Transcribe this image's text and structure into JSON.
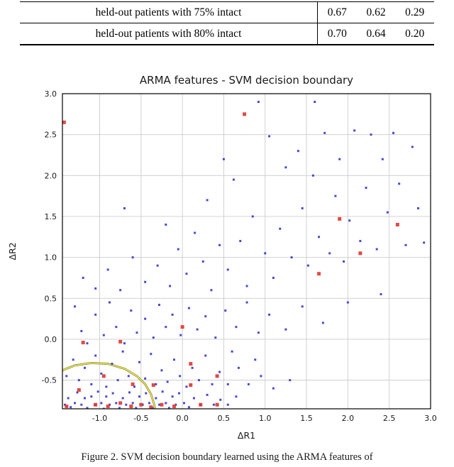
{
  "table": {
    "rows": [
      {
        "label": "held-out patients with 75% intact",
        "values": [
          "0.67",
          "0.62",
          "0.29"
        ]
      },
      {
        "label": "held-out patients with 80% intact",
        "values": [
          "0.70",
          "0.64",
          "0.20"
        ]
      }
    ]
  },
  "chart_data": {
    "type": "scatter",
    "title": "ARMA features - SVM decision boundary",
    "xlabel": "ΔR1",
    "ylabel": "ΔR2",
    "xlim": [
      -1.45,
      3.0
    ],
    "ylim": [
      -0.85,
      3.0
    ],
    "xticks": [
      -1.0,
      -0.5,
      0.0,
      0.5,
      1.0,
      1.5,
      2.0,
      2.5,
      3.0
    ],
    "yticks": [
      -0.5,
      0.0,
      0.5,
      1.0,
      1.5,
      2.0,
      2.5,
      3.0
    ],
    "grid": true,
    "grid_color": "#cccccc",
    "series": [
      {
        "name": "class-blue",
        "color": "#3535c9",
        "marker": "square",
        "marker_size": 3,
        "points": [
          [
            -1.42,
            -0.8
          ],
          [
            -1.38,
            -0.72
          ],
          [
            -1.35,
            -0.83
          ],
          [
            -1.3,
            -0.78
          ],
          [
            -1.27,
            -0.65
          ],
          [
            -1.22,
            -0.8
          ],
          [
            -1.18,
            -0.72
          ],
          [
            -1.15,
            -0.84
          ],
          [
            -1.1,
            -0.7
          ],
          [
            -1.06,
            -0.8
          ],
          [
            -1.02,
            -0.64
          ],
          [
            -0.98,
            -0.78
          ],
          [
            -0.95,
            -0.85
          ],
          [
            -0.92,
            -0.7
          ],
          [
            -0.88,
            -0.8
          ],
          [
            -0.84,
            -0.66
          ],
          [
            -0.8,
            -0.78
          ],
          [
            -0.76,
            -0.84
          ],
          [
            -0.72,
            -0.72
          ],
          [
            -0.68,
            -0.8
          ],
          [
            -0.64,
            -0.65
          ],
          [
            -0.6,
            -0.78
          ],
          [
            -0.56,
            -0.84
          ],
          [
            -0.52,
            -0.7
          ],
          [
            -0.48,
            -0.8
          ],
          [
            -0.44,
            -0.66
          ],
          [
            -0.4,
            -0.78
          ],
          [
            -0.36,
            -0.84
          ],
          [
            -0.32,
            -0.72
          ],
          [
            -0.28,
            -0.8
          ],
          [
            -0.24,
            -0.64
          ],
          [
            -0.2,
            -0.78
          ],
          [
            -0.16,
            -0.84
          ],
          [
            -0.12,
            -0.7
          ],
          [
            -0.08,
            -0.8
          ],
          [
            -0.04,
            -0.66
          ],
          [
            0.02,
            -0.78
          ],
          [
            0.08,
            -0.83
          ],
          [
            0.14,
            -0.72
          ],
          [
            0.22,
            -0.8
          ],
          [
            0.3,
            -0.68
          ],
          [
            0.38,
            -0.8
          ],
          [
            0.46,
            -0.74
          ],
          [
            0.55,
            -0.8
          ],
          [
            0.65,
            -0.7
          ],
          [
            -1.4,
            -0.45
          ],
          [
            -1.32,
            -0.25
          ],
          [
            -1.25,
            -0.5
          ],
          [
            -1.18,
            -0.35
          ],
          [
            -1.1,
            -0.55
          ],
          [
            -1.05,
            -0.2
          ],
          [
            -0.98,
            -0.42
          ],
          [
            -0.92,
            -0.58
          ],
          [
            -0.85,
            -0.3
          ],
          [
            -0.78,
            -0.5
          ],
          [
            -0.72,
            -0.15
          ],
          [
            -0.65,
            -0.45
          ],
          [
            -0.58,
            -0.58
          ],
          [
            -0.52,
            -0.28
          ],
          [
            -0.45,
            -0.48
          ],
          [
            -0.38,
            -0.18
          ],
          [
            -0.32,
            -0.55
          ],
          [
            -0.25,
            -0.38
          ],
          [
            -0.18,
            -0.52
          ],
          [
            -0.1,
            -0.25
          ],
          [
            -0.03,
            -0.45
          ],
          [
            0.05,
            -0.58
          ],
          [
            0.12,
            -0.35
          ],
          [
            0.2,
            -0.5
          ],
          [
            0.28,
            -0.2
          ],
          [
            0.36,
            -0.55
          ],
          [
            0.45,
            -0.4
          ],
          [
            0.55,
            -0.55
          ],
          [
            0.68,
            -0.35
          ],
          [
            0.8,
            -0.55
          ],
          [
            0.95,
            -0.45
          ],
          [
            1.1,
            -0.6
          ],
          [
            1.3,
            -0.5
          ],
          [
            0.6,
            -0.15
          ],
          [
            0.88,
            -0.25
          ],
          [
            -1.3,
            0.4
          ],
          [
            -1.22,
            0.1
          ],
          [
            -1.15,
            -0.05
          ],
          [
            -1.05,
            0.3
          ],
          [
            -0.95,
            0.05
          ],
          [
            -0.88,
            0.45
          ],
          [
            -0.8,
            0.15
          ],
          [
            -0.7,
            -0.05
          ],
          [
            -0.62,
            0.35
          ],
          [
            -0.55,
            0.08
          ],
          [
            -0.45,
            0.25
          ],
          [
            -0.35,
            0.02
          ],
          [
            -0.28,
            0.42
          ],
          [
            -0.2,
            0.15
          ],
          [
            -0.12,
            0.3
          ],
          [
            -0.02,
            0.05
          ],
          [
            0.08,
            0.38
          ],
          [
            0.18,
            0.12
          ],
          [
            0.28,
            0.28
          ],
          [
            0.4,
            0.02
          ],
          [
            0.52,
            0.35
          ],
          [
            0.65,
            0.15
          ],
          [
            0.78,
            0.45
          ],
          [
            0.92,
            0.08
          ],
          [
            1.05,
            0.3
          ],
          [
            1.25,
            0.12
          ],
          [
            1.45,
            0.4
          ],
          [
            1.7,
            0.2
          ],
          [
            2.0,
            0.45
          ],
          [
            2.4,
            0.55
          ],
          [
            -1.05,
            0.62
          ],
          [
            -0.9,
            0.85
          ],
          [
            -0.75,
            0.6
          ],
          [
            -0.6,
            1.0
          ],
          [
            -0.45,
            0.7
          ],
          [
            -0.3,
            0.9
          ],
          [
            -0.15,
            0.65
          ],
          [
            -0.05,
            1.1
          ],
          [
            0.05,
            0.8
          ],
          [
            0.15,
            1.3
          ],
          [
            0.25,
            0.95
          ],
          [
            0.35,
            0.6
          ],
          [
            0.45,
            1.15
          ],
          [
            0.55,
            0.85
          ],
          [
            0.62,
            1.95
          ],
          [
            0.7,
            1.2
          ],
          [
            0.78,
            0.65
          ],
          [
            0.85,
            1.5
          ],
          [
            0.92,
            2.9
          ],
          [
            1.0,
            1.05
          ],
          [
            1.05,
            2.48
          ],
          [
            1.1,
            0.75
          ],
          [
            1.18,
            1.35
          ],
          [
            1.25,
            2.1
          ],
          [
            1.32,
            1.0
          ],
          [
            1.4,
            2.3
          ],
          [
            1.45,
            1.6
          ],
          [
            1.52,
            0.9
          ],
          [
            1.58,
            2.0
          ],
          [
            1.65,
            1.25
          ],
          [
            1.72,
            2.52
          ],
          [
            1.78,
            1.05
          ],
          [
            1.85,
            1.75
          ],
          [
            1.9,
            2.2
          ],
          [
            1.95,
            0.95
          ],
          [
            2.02,
            1.45
          ],
          [
            2.08,
            2.55
          ],
          [
            2.15,
            1.2
          ],
          [
            2.22,
            1.85
          ],
          [
            2.28,
            2.5
          ],
          [
            2.35,
            1.1
          ],
          [
            2.42,
            2.2
          ],
          [
            2.48,
            1.55
          ],
          [
            2.55,
            2.52
          ],
          [
            2.62,
            1.9
          ],
          [
            2.7,
            1.15
          ],
          [
            2.78,
            2.35
          ],
          [
            2.85,
            1.6
          ],
          [
            2.92,
            1.18
          ],
          [
            0.3,
            1.7
          ],
          [
            -0.2,
            1.4
          ],
          [
            -0.7,
            1.6
          ],
          [
            -1.2,
            0.75
          ],
          [
            0.5,
            2.2
          ],
          [
            1.6,
            2.9
          ]
        ]
      },
      {
        "name": "class-red",
        "color": "#e0352f",
        "marker": "square",
        "marker_size": 5,
        "points": [
          [
            -1.43,
            2.65
          ],
          [
            0.75,
            2.75
          ],
          [
            1.9,
            1.47
          ],
          [
            2.6,
            1.4
          ],
          [
            2.15,
            1.05
          ],
          [
            1.65,
            0.8
          ],
          [
            0.0,
            0.15
          ],
          [
            -1.2,
            -0.04
          ],
          [
            -0.75,
            -0.03
          ],
          [
            0.1,
            -0.3
          ],
          [
            -0.95,
            -0.45
          ],
          [
            0.42,
            -0.45
          ],
          [
            -0.6,
            -0.55
          ],
          [
            -0.35,
            -0.56
          ],
          [
            0.1,
            -0.56
          ],
          [
            -1.25,
            -0.62
          ],
          [
            -1.05,
            -0.8
          ],
          [
            -0.9,
            -0.82
          ],
          [
            -0.75,
            -0.78
          ],
          [
            -0.62,
            -0.82
          ],
          [
            -0.5,
            -0.8
          ],
          [
            -0.38,
            -0.83
          ],
          [
            -0.25,
            -0.8
          ],
          [
            -0.1,
            -0.82
          ],
          [
            0.22,
            -0.8
          ],
          [
            0.42,
            -0.8
          ],
          [
            -1.4,
            -0.82
          ]
        ]
      }
    ],
    "boundary": {
      "name": "svm-decision-boundary",
      "color_outer": "#7f7f1a",
      "color_inner": "#f2ee6a",
      "points": [
        [
          -1.45,
          -0.38
        ],
        [
          -1.3,
          -0.32
        ],
        [
          -1.1,
          -0.29
        ],
        [
          -0.9,
          -0.3
        ],
        [
          -0.7,
          -0.36
        ],
        [
          -0.55,
          -0.45
        ],
        [
          -0.45,
          -0.55
        ],
        [
          -0.38,
          -0.67
        ],
        [
          -0.34,
          -0.8
        ],
        [
          -0.33,
          -0.85
        ]
      ]
    }
  },
  "caption": {
    "text": "Figure 2. SVM decision boundary learned using the ARMA features of"
  }
}
